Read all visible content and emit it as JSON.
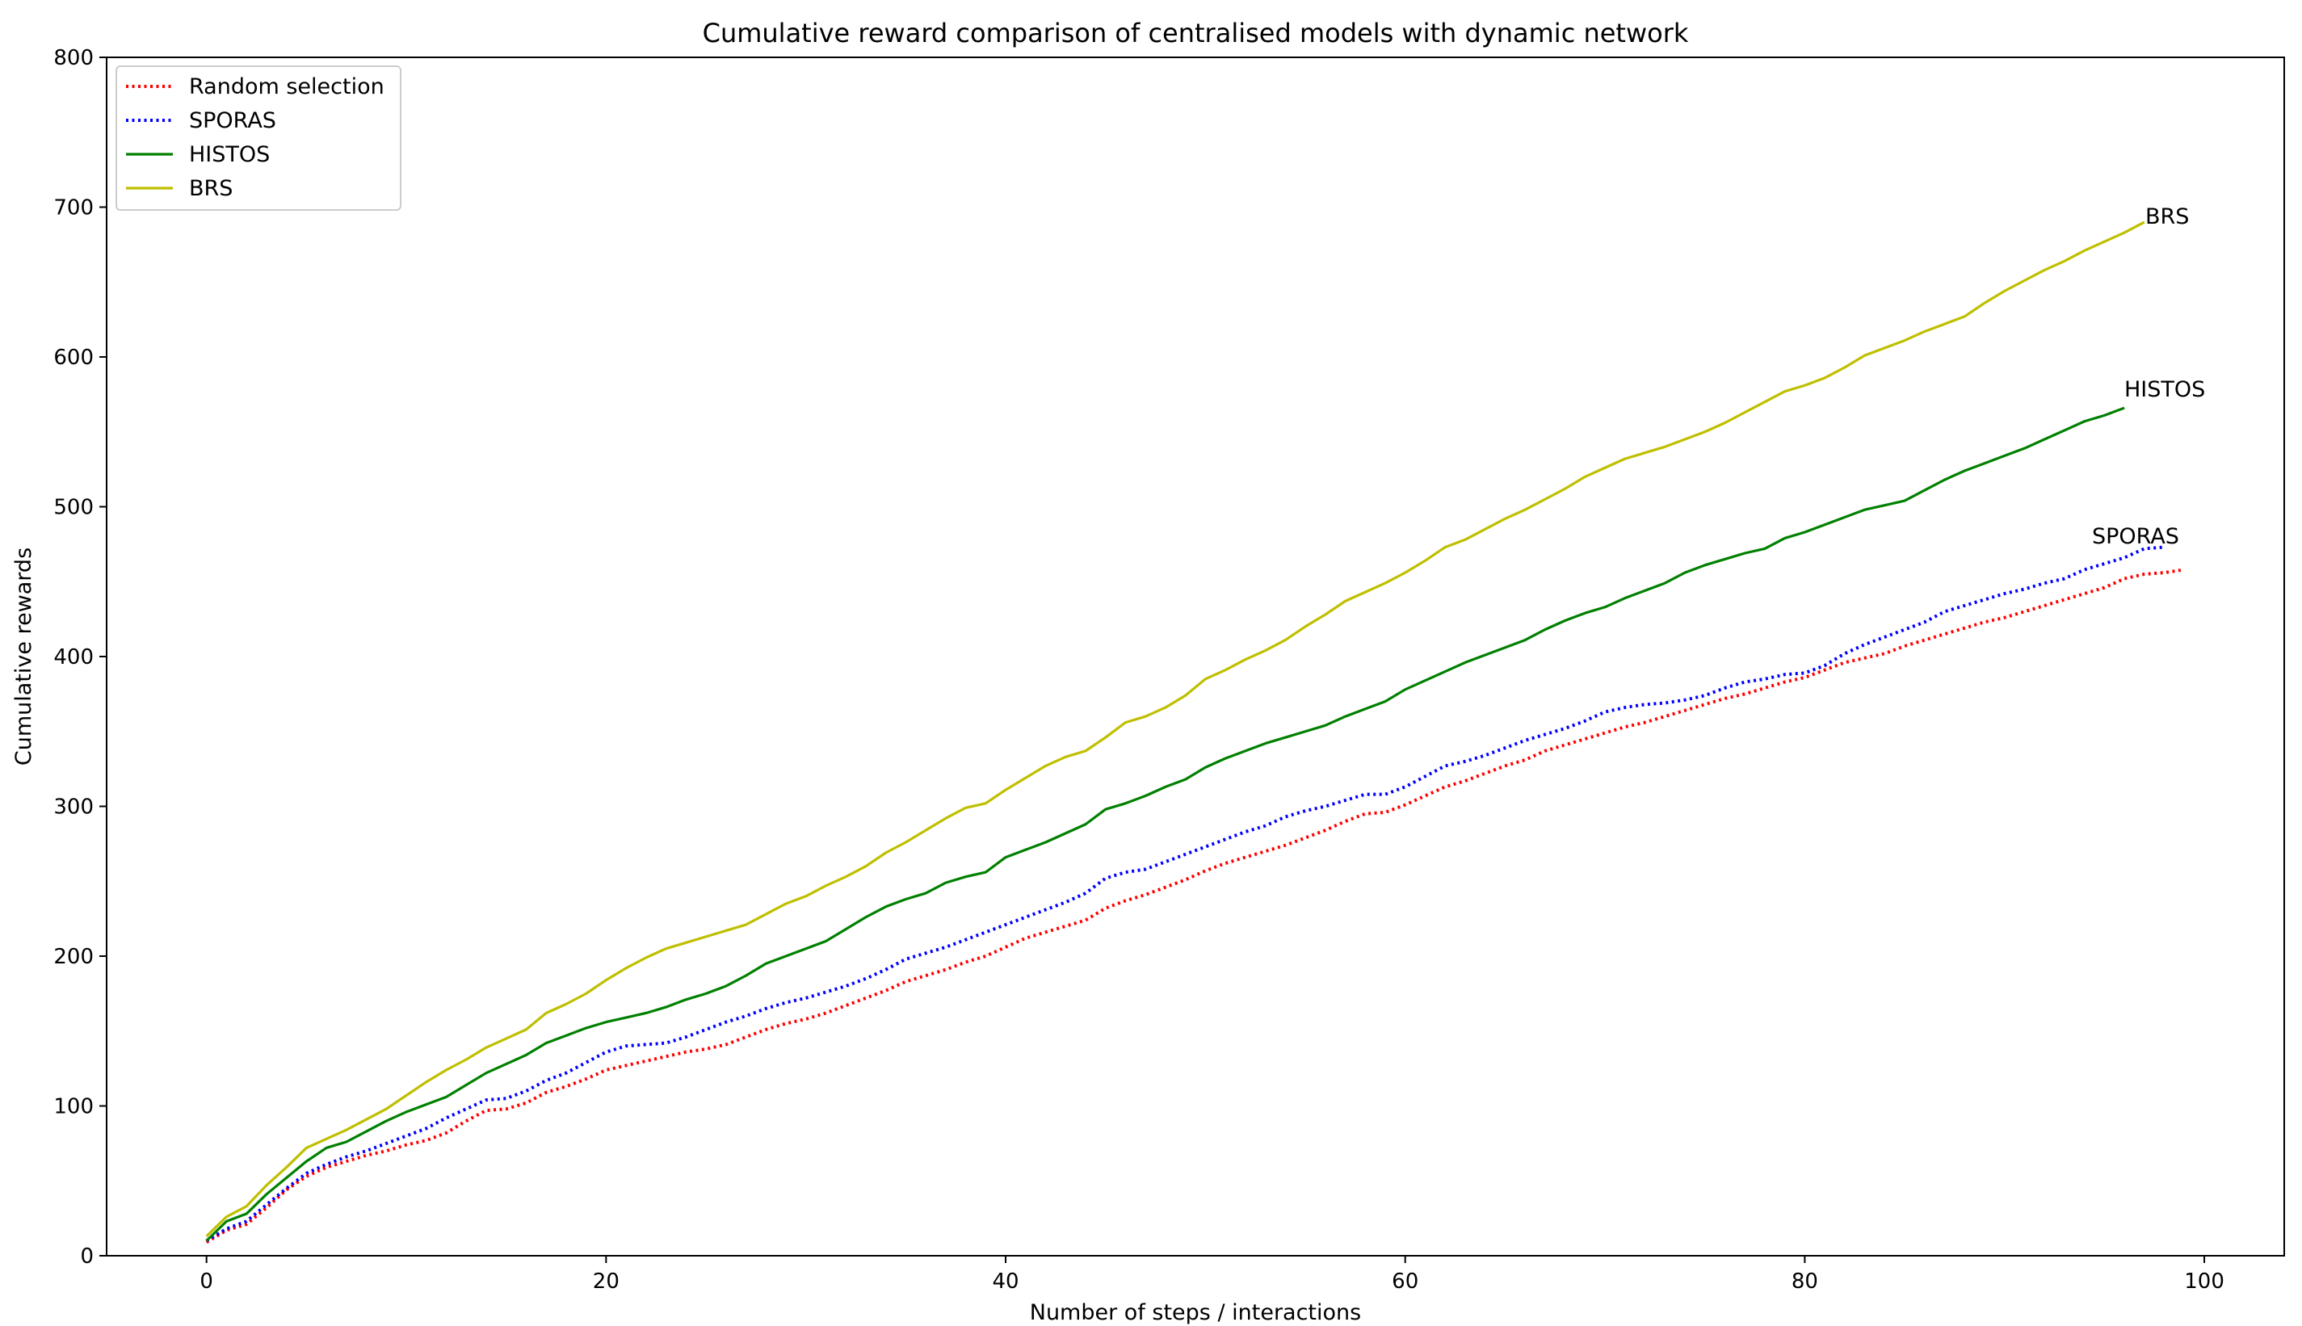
{
  "chart_data": {
    "type": "line",
    "title": "Cumulative reward comparison of centralised models with dynamic network",
    "xlabel": "Number of steps / interactions",
    "ylabel": "Cumulative rewards",
    "xlim": [
      -5,
      104
    ],
    "ylim": [
      0,
      800
    ],
    "x_ticks": [
      "0",
      "20",
      "40",
      "60",
      "80",
      "100"
    ],
    "x_tick_values": [
      0,
      20,
      40,
      60,
      80,
      100
    ],
    "y_ticks": [
      "0",
      "100",
      "200",
      "300",
      "400",
      "500",
      "600",
      "700",
      "800"
    ],
    "y_tick_values": [
      0,
      100,
      200,
      300,
      400,
      500,
      600,
      700,
      800
    ],
    "grid": false,
    "legend_position": "top-left",
    "series": [
      {
        "name": "Random selection",
        "color": "#ff0000",
        "style": "dotted",
        "values": [
          9,
          17,
          21,
          32,
          44,
          53,
          59,
          63,
          67,
          70,
          74,
          77,
          82,
          90,
          97,
          98,
          102,
          109,
          113,
          118,
          124,
          127,
          130,
          133,
          136,
          138,
          141,
          146,
          151,
          155,
          158,
          162,
          167,
          172,
          177,
          183,
          187,
          191,
          196,
          200,
          206,
          212,
          216,
          220,
          224,
          232,
          237,
          241,
          246,
          251,
          257,
          262,
          266,
          270,
          274,
          279,
          284,
          290,
          295,
          296,
          301,
          307,
          313,
          317,
          322,
          327,
          331,
          337,
          341,
          345,
          349,
          353,
          356,
          360,
          364,
          368,
          372,
          375,
          379,
          383,
          386,
          391,
          396,
          399,
          402,
          407,
          411,
          415,
          419,
          423,
          426,
          430,
          434,
          438,
          442,
          446,
          452,
          455,
          456,
          458
        ]
      },
      {
        "name": "SPORAS",
        "color": "#0000ff",
        "style": "dotted",
        "values": [
          10,
          18,
          23,
          34,
          45,
          55,
          61,
          66,
          70,
          75,
          80,
          85,
          92,
          98,
          104,
          105,
          110,
          117,
          122,
          129,
          136,
          140,
          141,
          142,
          146,
          151,
          156,
          160,
          165,
          169,
          172,
          176,
          180,
          185,
          191,
          198,
          202,
          206,
          211,
          216,
          221,
          226,
          231,
          236,
          242,
          252,
          256,
          258,
          263,
          268,
          273,
          278,
          283,
          287,
          293,
          297,
          300,
          304,
          308,
          308,
          313,
          320,
          327,
          330,
          334,
          339,
          344,
          348,
          352,
          357,
          363,
          366,
          368,
          369,
          371,
          374,
          379,
          383,
          385,
          388,
          389,
          394,
          402,
          408,
          413,
          418,
          423,
          430,
          434,
          438,
          442,
          445,
          449,
          452,
          458,
          462,
          466,
          472,
          473
        ]
      },
      {
        "name": "HISTOS",
        "color": "#008000",
        "style": "solid",
        "values": [
          10,
          23,
          28,
          41,
          52,
          63,
          72,
          76,
          83,
          90,
          96,
          101,
          106,
          114,
          122,
          128,
          134,
          142,
          147,
          152,
          156,
          159,
          162,
          166,
          171,
          175,
          180,
          187,
          195,
          200,
          205,
          210,
          218,
          226,
          233,
          238,
          242,
          249,
          253,
          256,
          266,
          271,
          276,
          282,
          288,
          298,
          302,
          307,
          313,
          318,
          326,
          332,
          337,
          342,
          346,
          350,
          354,
          360,
          365,
          370,
          378,
          384,
          390,
          396,
          401,
          406,
          411,
          418,
          424,
          429,
          433,
          439,
          444,
          449,
          456,
          461,
          465,
          469,
          472,
          479,
          483,
          488,
          493,
          498,
          501,
          504,
          511,
          518,
          524,
          529,
          534,
          539,
          545,
          551,
          557,
          561,
          566
        ]
      },
      {
        "name": "BRS",
        "color": "#bfbf00",
        "style": "solid",
        "values": [
          13,
          26,
          33,
          47,
          59,
          72,
          78,
          84,
          91,
          98,
          107,
          116,
          124,
          131,
          139,
          145,
          151,
          162,
          168,
          175,
          184,
          192,
          199,
          205,
          209,
          213,
          217,
          221,
          228,
          235,
          240,
          247,
          253,
          260,
          269,
          276,
          284,
          292,
          299,
          302,
          311,
          319,
          327,
          333,
          337,
          346,
          356,
          360,
          366,
          374,
          385,
          391,
          398,
          404,
          411,
          420,
          428,
          437,
          443,
          449,
          456,
          464,
          473,
          478,
          485,
          492,
          498,
          505,
          512,
          520,
          526,
          532,
          536,
          540,
          545,
          550,
          556,
          563,
          570,
          577,
          581,
          586,
          593,
          601,
          606,
          611,
          617,
          622,
          627,
          636,
          644,
          651,
          658,
          664,
          671,
          677,
          683,
          690
        ]
      }
    ],
    "annotations": [
      "BRS",
      "HISTOS",
      "SPORAS"
    ]
  }
}
